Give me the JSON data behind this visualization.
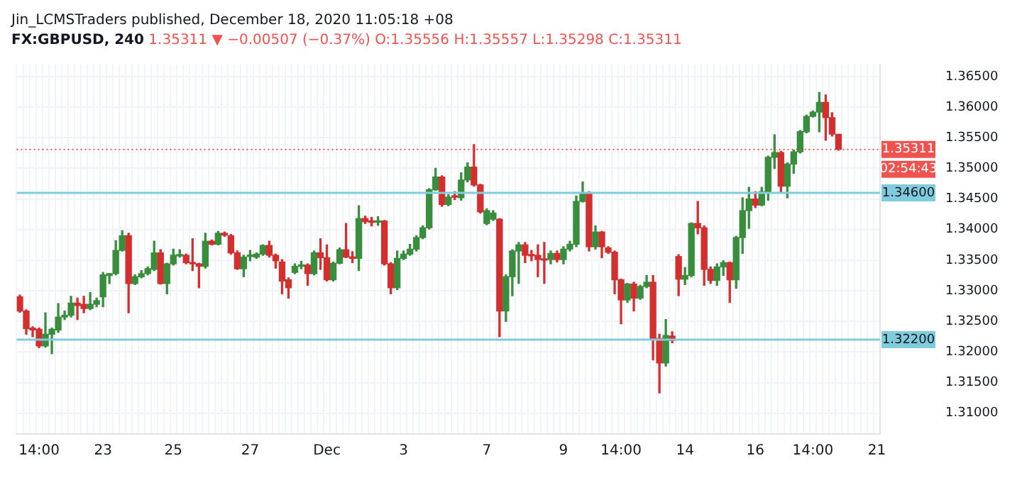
{
  "chart_data": {
    "type": "candlestick",
    "title": "FX:GBPUSD, 240",
    "subtitle": "1.35311 ▼ −0.00507 (−0.37%) O:1.35556 H:1.35557 L:1.35298 C:1.35311",
    "annotations": [
      "Jin_LCMSTraders published, December 18, 2020 11:05:18 +08",
      "02:54:43"
    ],
    "categories": [
      null,
      null,
      null,
      "14:00",
      null,
      null,
      null,
      null,
      null,
      null,
      null,
      null,
      null,
      "23",
      null,
      null,
      null,
      null,
      null,
      null,
      null,
      null,
      null,
      null,
      "25",
      null,
      null,
      null,
      null,
      null,
      null,
      null,
      null,
      null,
      null,
      null,
      "27",
      null,
      null,
      null,
      null,
      null,
      null,
      null,
      null,
      null,
      null,
      null,
      "Dec",
      null,
      null,
      null,
      null,
      null,
      null,
      null,
      null,
      null,
      null,
      null,
      "3",
      null,
      null,
      null,
      null,
      null,
      null,
      null,
      null,
      null,
      null,
      null,
      null,
      "7",
      null,
      null,
      null,
      null,
      null,
      null,
      null,
      null,
      null,
      null,
      null,
      "9",
      null,
      null,
      null,
      null,
      null,
      null,
      null,
      null,
      "14:00",
      null,
      null,
      null,
      null,
      null,
      null,
      null,
      null,
      null,
      "14",
      null,
      null,
      null,
      null,
      null,
      null,
      null,
      null,
      null,
      null,
      "16",
      null,
      null,
      null,
      null,
      null,
      null,
      null,
      null,
      "14:00",
      null,
      null,
      null,
      null,
      null,
      null,
      null,
      null,
      null,
      "21"
    ],
    "ohlc": [
      [
        1.329,
        1.3293,
        1.3265,
        1.3267
      ],
      [
        1.3267,
        1.3269,
        1.3229,
        1.3238
      ],
      [
        1.3239,
        1.3241,
        1.3225,
        1.3236
      ],
      [
        1.3237,
        1.3239,
        1.3207,
        1.321
      ],
      [
        1.321,
        1.3264,
        1.3208,
        1.3229
      ],
      [
        1.3229,
        1.3239,
        1.3197,
        1.3237
      ],
      [
        1.3236,
        1.3279,
        1.3232,
        1.3257
      ],
      [
        1.3257,
        1.3267,
        1.3253,
        1.326
      ],
      [
        1.326,
        1.3291,
        1.3257,
        1.328
      ],
      [
        1.328,
        1.3288,
        1.3253,
        1.3276
      ],
      [
        1.3278,
        1.3291,
        1.3264,
        1.3271
      ],
      [
        1.3271,
        1.3297,
        1.3269,
        1.3278
      ],
      [
        1.3278,
        1.3288,
        1.3274,
        1.3284
      ],
      [
        1.329,
        1.333,
        1.3274,
        1.3326
      ],
      [
        1.3325,
        1.3328,
        1.3312,
        1.3328
      ],
      [
        1.3328,
        1.3382,
        1.3326,
        1.3366
      ],
      [
        1.3366,
        1.3398,
        1.3365,
        1.339
      ],
      [
        1.339,
        1.3394,
        1.3264,
        1.3312
      ],
      [
        1.3312,
        1.3326,
        1.331,
        1.3323
      ],
      [
        1.3323,
        1.3333,
        1.3321,
        1.3328
      ],
      [
        1.3328,
        1.3339,
        1.3326,
        1.3336
      ],
      [
        1.3335,
        1.3381,
        1.3333,
        1.3362
      ],
      [
        1.3362,
        1.3367,
        1.3311,
        1.3312
      ],
      [
        1.3312,
        1.3345,
        1.3295,
        1.3344
      ],
      [
        1.3344,
        1.3368,
        1.3342,
        1.3358
      ],
      [
        1.3357,
        1.3367,
        1.3355,
        1.3358
      ],
      [
        1.3358,
        1.336,
        1.3344,
        1.3346
      ],
      [
        1.3346,
        1.3385,
        1.3333,
        1.3344
      ],
      [
        1.3344,
        1.3345,
        1.3305,
        1.334
      ],
      [
        1.334,
        1.3394,
        1.3337,
        1.3381
      ],
      [
        1.3381,
        1.3383,
        1.3375,
        1.3376
      ],
      [
        1.3376,
        1.3397,
        1.3375,
        1.3394
      ],
      [
        1.3394,
        1.3396,
        1.3389,
        1.3391
      ],
      [
        1.339,
        1.3392,
        1.336,
        1.3362
      ],
      [
        1.3362,
        1.3365,
        1.3335,
        1.3336
      ],
      [
        1.3336,
        1.3358,
        1.3323,
        1.3355
      ],
      [
        1.3356,
        1.3366,
        1.3349,
        1.3357
      ],
      [
        1.3355,
        1.3362,
        1.3353,
        1.336
      ],
      [
        1.336,
        1.3375,
        1.3358,
        1.3374
      ],
      [
        1.3374,
        1.3381,
        1.3355,
        1.3358
      ],
      [
        1.3358,
        1.336,
        1.3337,
        1.3349
      ],
      [
        1.3347,
        1.3351,
        1.3295,
        1.3316
      ],
      [
        1.3318,
        1.3321,
        1.3288,
        1.3305
      ],
      [
        1.333,
        1.3344,
        1.3328,
        1.334
      ],
      [
        1.334,
        1.3348,
        1.3336,
        1.3342
      ],
      [
        1.3342,
        1.3344,
        1.3309,
        1.3328
      ],
      [
        1.3328,
        1.3365,
        1.3326,
        1.3362
      ],
      [
        1.3362,
        1.3385,
        1.3335,
        1.3354
      ],
      [
        1.3354,
        1.3375,
        1.3316,
        1.3318
      ],
      [
        1.3318,
        1.3347,
        1.3316,
        1.3345
      ],
      [
        1.3345,
        1.337,
        1.3344,
        1.3367
      ],
      [
        1.3367,
        1.341,
        1.3354,
        1.3355
      ],
      [
        1.3355,
        1.3364,
        1.3346,
        1.3353
      ],
      [
        1.3353,
        1.3439,
        1.3333,
        1.3418
      ],
      [
        1.3418,
        1.3422,
        1.341,
        1.3413
      ],
      [
        1.3413,
        1.342,
        1.3406,
        1.3412
      ],
      [
        1.3412,
        1.3421,
        1.3407,
        1.3414
      ],
      [
        1.3414,
        1.3415,
        1.3342,
        1.3344
      ],
      [
        1.3344,
        1.3346,
        1.3295,
        1.3305
      ],
      [
        1.3305,
        1.3365,
        1.3302,
        1.3353
      ],
      [
        1.3353,
        1.3365,
        1.3351,
        1.336
      ],
      [
        1.336,
        1.3376,
        1.3358,
        1.3368
      ],
      [
        1.3368,
        1.339,
        1.3365,
        1.3387
      ],
      [
        1.3387,
        1.3406,
        1.3385,
        1.3403
      ],
      [
        1.3403,
        1.3467,
        1.3401,
        1.3465
      ],
      [
        1.3465,
        1.35,
        1.3464,
        1.3486
      ],
      [
        1.3486,
        1.3488,
        1.3438,
        1.3441
      ],
      [
        1.3441,
        1.3457,
        1.3439,
        1.3453
      ],
      [
        1.3455,
        1.3462,
        1.3449,
        1.3453
      ],
      [
        1.3452,
        1.3493,
        1.3448,
        1.3481
      ],
      [
        1.3481,
        1.3509,
        1.3478,
        1.3502
      ],
      [
        1.3502,
        1.3539,
        1.3471,
        1.3473
      ],
      [
        1.3473,
        1.3474,
        1.3427,
        1.3429
      ],
      [
        1.341,
        1.3434,
        1.3408,
        1.3431
      ],
      [
        1.3417,
        1.3431,
        1.3415,
        1.3427
      ],
      [
        1.3417,
        1.3418,
        1.3225,
        1.3267
      ],
      [
        1.3267,
        1.3326,
        1.325,
        1.3323
      ],
      [
        1.3323,
        1.3367,
        1.3292,
        1.3365
      ],
      [
        1.3365,
        1.3379,
        1.3312,
        1.3375
      ],
      [
        1.3375,
        1.3379,
        1.3346,
        1.3358
      ],
      [
        1.3358,
        1.3366,
        1.3349,
        1.3357
      ],
      [
        1.3358,
        1.3375,
        1.3323,
        1.3351
      ],
      [
        1.3351,
        1.3379,
        1.3312,
        1.335
      ],
      [
        1.3351,
        1.3365,
        1.3344,
        1.3361
      ],
      [
        1.3361,
        1.3365,
        1.3347,
        1.3351
      ],
      [
        1.3351,
        1.3372,
        1.3344,
        1.3368
      ],
      [
        1.3368,
        1.3381,
        1.3365,
        1.3376
      ],
      [
        1.3376,
        1.3455,
        1.3372,
        1.3446
      ],
      [
        1.3446,
        1.3478,
        1.3445,
        1.346
      ],
      [
        1.346,
        1.3462,
        1.3365,
        1.3372
      ],
      [
        1.3372,
        1.3406,
        1.3368,
        1.3396
      ],
      [
        1.3396,
        1.3397,
        1.3354,
        1.3372
      ],
      [
        1.337,
        1.3372,
        1.3361,
        1.3363
      ],
      [
        1.3363,
        1.3365,
        1.3295,
        1.3318
      ],
      [
        1.3318,
        1.3319,
        1.3246,
        1.3285
      ],
      [
        1.3285,
        1.3312,
        1.3281,
        1.3311
      ],
      [
        1.3311,
        1.3314,
        1.3267,
        1.3288
      ],
      [
        1.3288,
        1.3309,
        1.3286,
        1.3307
      ],
      [
        1.3307,
        1.3325,
        1.3305,
        1.3314
      ],
      [
        1.3314,
        1.3325,
        1.3187,
        1.3222
      ],
      [
        1.3222,
        1.3229,
        1.3133,
        1.3182
      ],
      [
        1.3182,
        1.3253,
        1.3177,
        1.3227
      ],
      [
        1.3226,
        1.3233,
        1.3215,
        1.3219
      ],
      [
        1.3356,
        1.3359,
        1.3292,
        1.3319
      ],
      [
        1.3319,
        1.3338,
        1.331,
        1.3325
      ],
      [
        1.3325,
        1.3411,
        1.3323,
        1.341
      ],
      [
        1.341,
        1.3446,
        1.3393,
        1.3403
      ],
      [
        1.3403,
        1.3406,
        1.3309,
        1.3335
      ],
      [
        1.3335,
        1.3339,
        1.3312,
        1.3317
      ],
      [
        1.3317,
        1.3344,
        1.3309,
        1.3339
      ],
      [
        1.3339,
        1.3349,
        1.3325,
        1.3346
      ],
      [
        1.3346,
        1.3347,
        1.3281,
        1.3318
      ],
      [
        1.3318,
        1.3389,
        1.3304,
        1.3387
      ],
      [
        1.3387,
        1.3452,
        1.3361,
        1.3431
      ],
      [
        1.3431,
        1.3469,
        1.3402,
        1.345
      ],
      [
        1.345,
        1.3462,
        1.3436,
        1.344
      ],
      [
        1.344,
        1.3469,
        1.3439,
        1.3462
      ],
      [
        1.3462,
        1.352,
        1.3448,
        1.3518
      ],
      [
        1.3518,
        1.3555,
        1.35,
        1.3526
      ],
      [
        1.3526,
        1.3528,
        1.346,
        1.3471
      ],
      [
        1.3471,
        1.3509,
        1.3452,
        1.3507
      ],
      [
        1.3507,
        1.353,
        1.3492,
        1.3527
      ],
      [
        1.3527,
        1.3562,
        1.3525,
        1.356
      ],
      [
        1.356,
        1.3587,
        1.3558,
        1.3585
      ],
      [
        1.3585,
        1.3594,
        1.3584,
        1.3592
      ],
      [
        1.3592,
        1.3624,
        1.356,
        1.3608
      ],
      [
        1.3608,
        1.362,
        1.3546,
        1.3583
      ],
      [
        1.3583,
        1.3591,
        1.3553,
        1.3556
      ],
      [
        1.35556,
        1.35557,
        1.35298,
        1.35311
      ],
      null,
      null,
      null,
      null,
      null,
      null
    ],
    "ylim": [
      1.3066,
      1.367
    ],
    "yticks": [
      {
        "value": 1.31,
        "label": "1.31000"
      },
      {
        "value": 1.315,
        "label": "1.31500"
      },
      {
        "value": 1.32,
        "label": "1.32000"
      },
      {
        "value": 1.325,
        "label": "1.32500"
      },
      {
        "value": 1.33,
        "label": "1.33000"
      },
      {
        "value": 1.335,
        "label": "1.33500"
      },
      {
        "value": 1.34,
        "label": "1.34000"
      },
      {
        "value": 1.345,
        "label": "1.34500"
      },
      {
        "value": 1.35,
        "label": "1.35000"
      },
      {
        "value": 1.355,
        "label": "1.35500"
      },
      {
        "value": 1.36,
        "label": "1.36000"
      },
      {
        "value": 1.365,
        "label": "1.36500"
      }
    ],
    "grid": true,
    "ref_lines": [
      {
        "axis": "y",
        "value": 1.346,
        "label": "1.34600",
        "color": "#80cbdc"
      },
      {
        "axis": "y",
        "value": 1.322,
        "label": "1.32200",
        "color": "#80cbdc"
      },
      {
        "axis": "y",
        "value": 1.35311,
        "label": "1.35311",
        "color": "#ef5350",
        "line_style": "dotted"
      }
    ]
  }
}
